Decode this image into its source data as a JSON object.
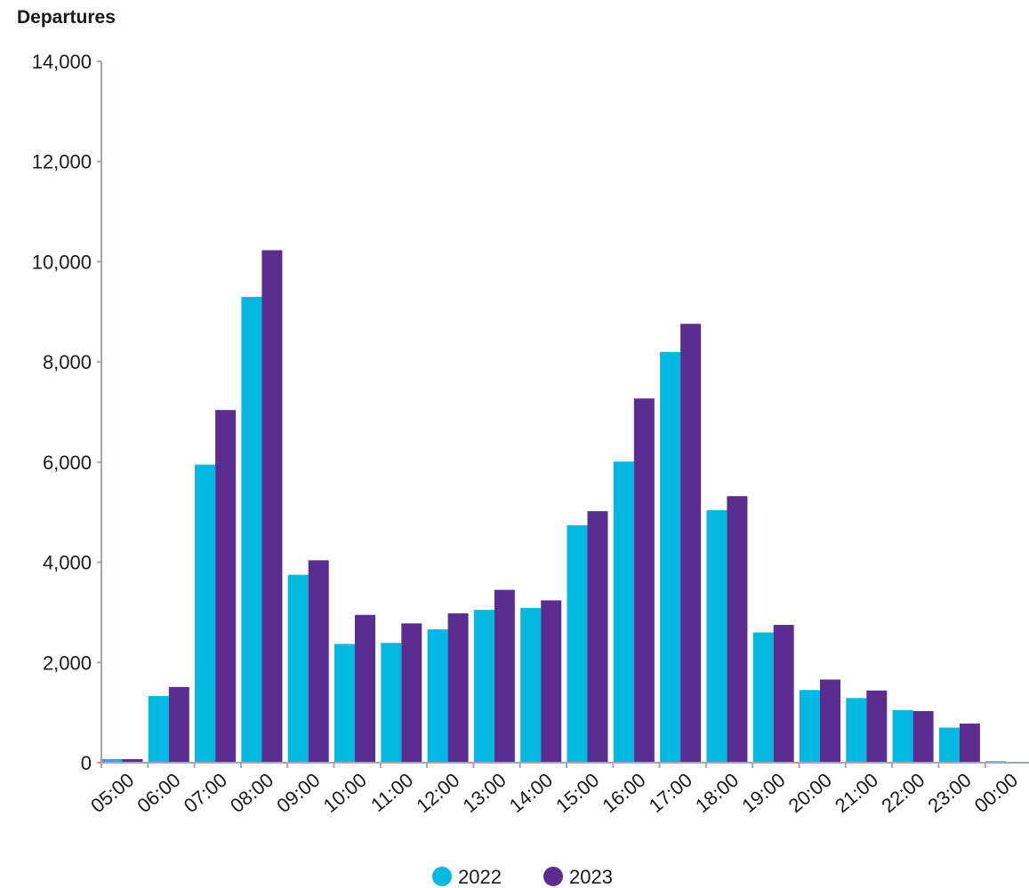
{
  "chart_data": {
    "type": "bar",
    "title": "",
    "xlabel": "",
    "ylabel": "Departures",
    "ylim": [
      0,
      14000
    ],
    "yticks": [
      0,
      2000,
      4000,
      6000,
      8000,
      10000,
      12000,
      14000
    ],
    "ytick_labels": [
      "0",
      "2,000",
      "4,000",
      "6,000",
      "8,000",
      "10,000",
      "12,000",
      "14,000"
    ],
    "grid": false,
    "legend_position": "bottom-center",
    "categories": [
      "05:00",
      "06:00",
      "07:00",
      "08:00",
      "09:00",
      "10:00",
      "11:00",
      "12:00",
      "13:00",
      "14:00",
      "15:00",
      "16:00",
      "17:00",
      "18:00",
      "19:00",
      "20:00",
      "21:00",
      "22:00",
      "23:00",
      "00:00"
    ],
    "series": [
      {
        "name": "2022",
        "color": "#00b8e0",
        "values": [
          70,
          1330,
          5950,
          9300,
          3750,
          2370,
          2390,
          2660,
          3050,
          3090,
          4740,
          6010,
          8200,
          5040,
          2600,
          1450,
          1290,
          1050,
          700,
          30
        ]
      },
      {
        "name": "2023",
        "color": "#5b2d90",
        "values": [
          70,
          1510,
          7040,
          10230,
          4040,
          2950,
          2780,
          2980,
          3450,
          3240,
          5020,
          7270,
          8760,
          5320,
          2750,
          1660,
          1440,
          1030,
          780,
          10
        ]
      }
    ],
    "axis_color": "#a0a8b0"
  }
}
